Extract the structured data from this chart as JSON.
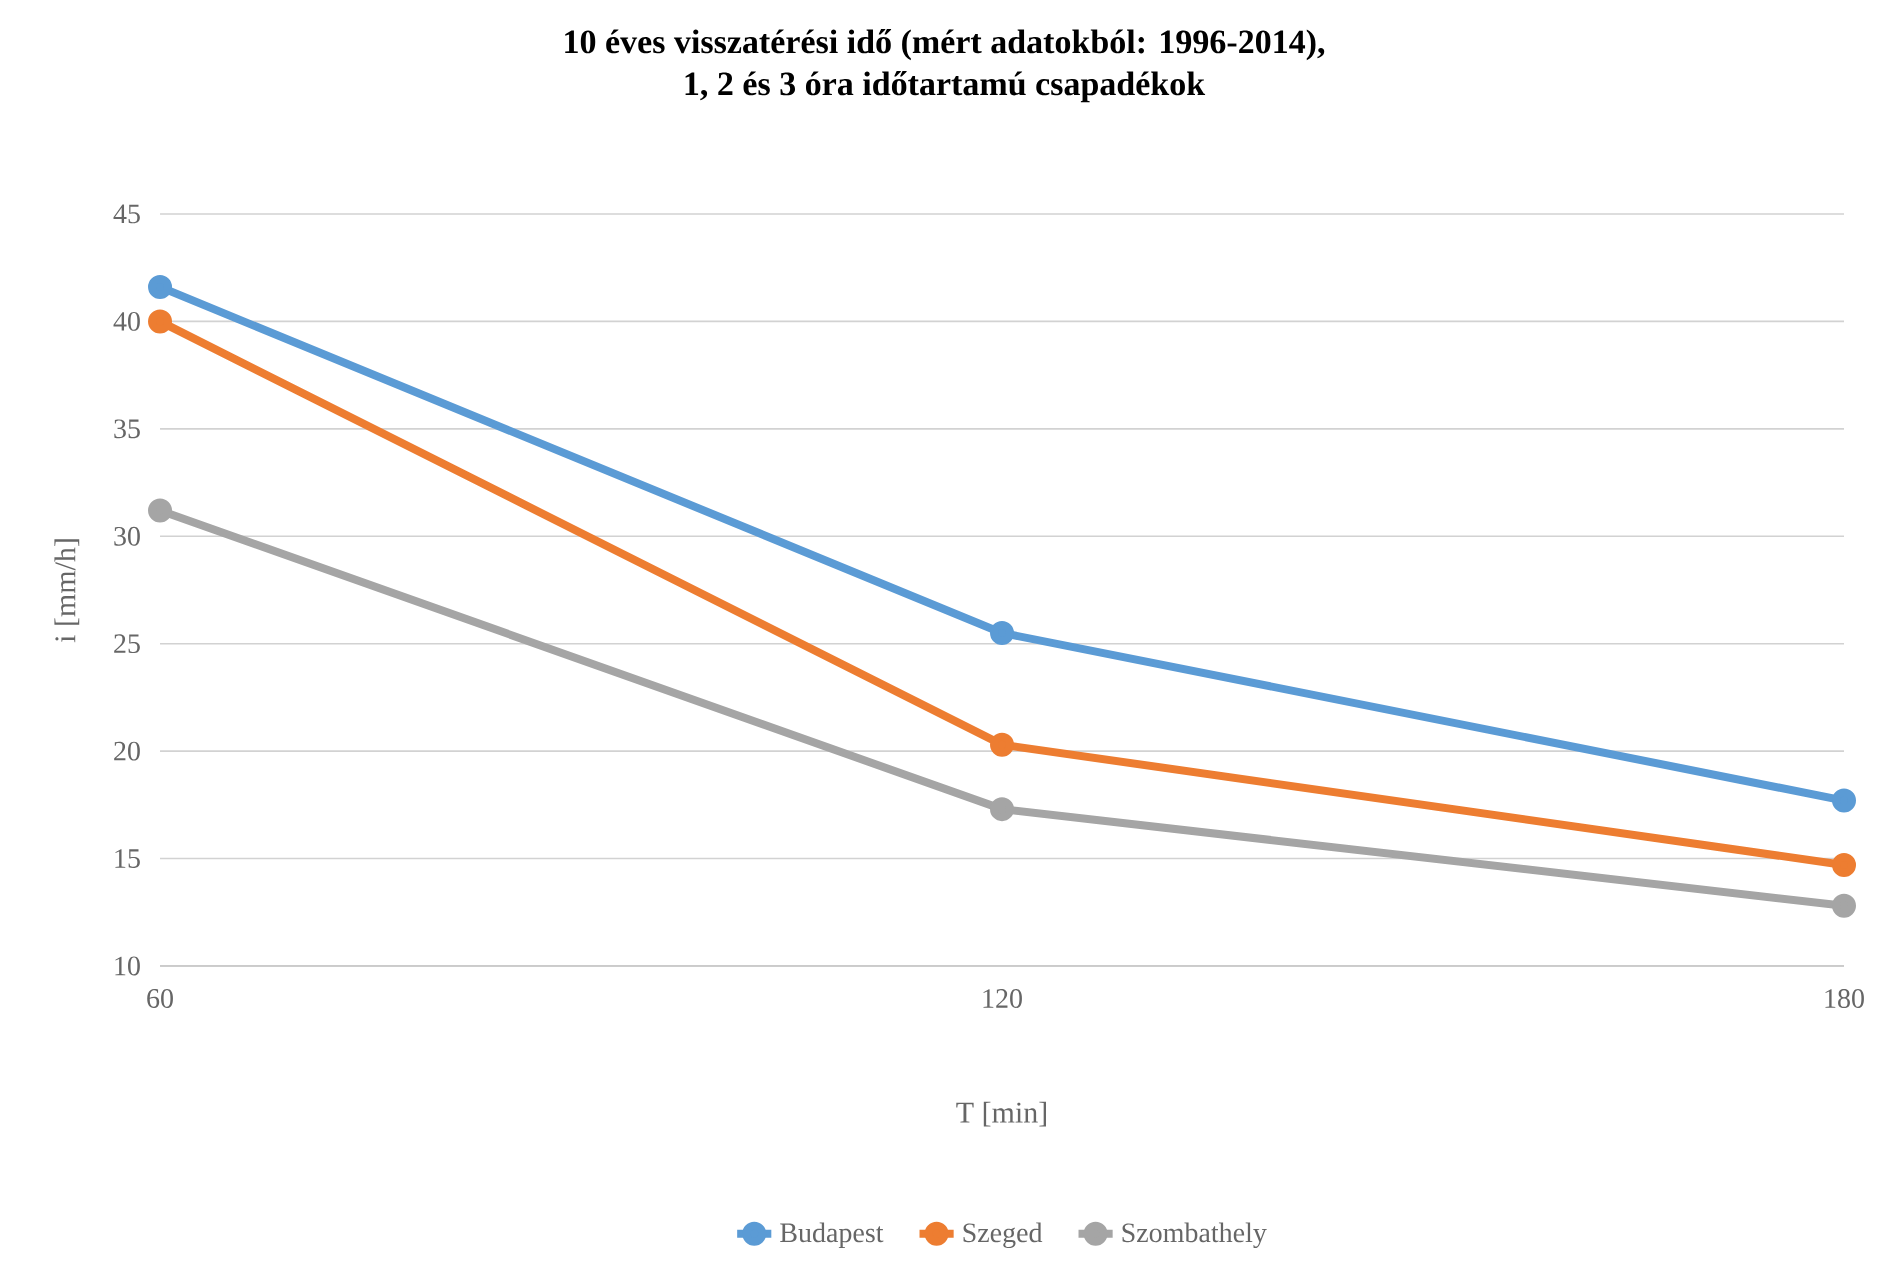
{
  "chart_data": {
    "type": "line",
    "title": "10 éves visszatérési idő (mért adatokból: 1996-2014),",
    "subtitle": "1, 2 és 3 óra időtartamú csapadékok",
    "xlabel": "T [min]",
    "ylabel": "i [mm/h]",
    "x": [
      60,
      120,
      180
    ],
    "series": [
      {
        "name": "Budapest",
        "color": "#5b9bd5",
        "values": [
          41.6,
          25.5,
          17.7
        ]
      },
      {
        "name": "Szeged",
        "color": "#ed7d31",
        "values": [
          40.0,
          20.3,
          14.7
        ]
      },
      {
        "name": "Szombathely",
        "color": "#a5a5a5",
        "values": [
          31.2,
          17.3,
          12.8
        ]
      }
    ],
    "xlim": [
      60,
      180
    ],
    "xticks": [
      60,
      120,
      180
    ],
    "ylim": [
      10,
      45
    ],
    "yticks": [
      10,
      15,
      20,
      25,
      30,
      35,
      40,
      45
    ],
    "grid": "y",
    "legend": "bottom",
    "marker": "circle",
    "line_style": "solid"
  }
}
